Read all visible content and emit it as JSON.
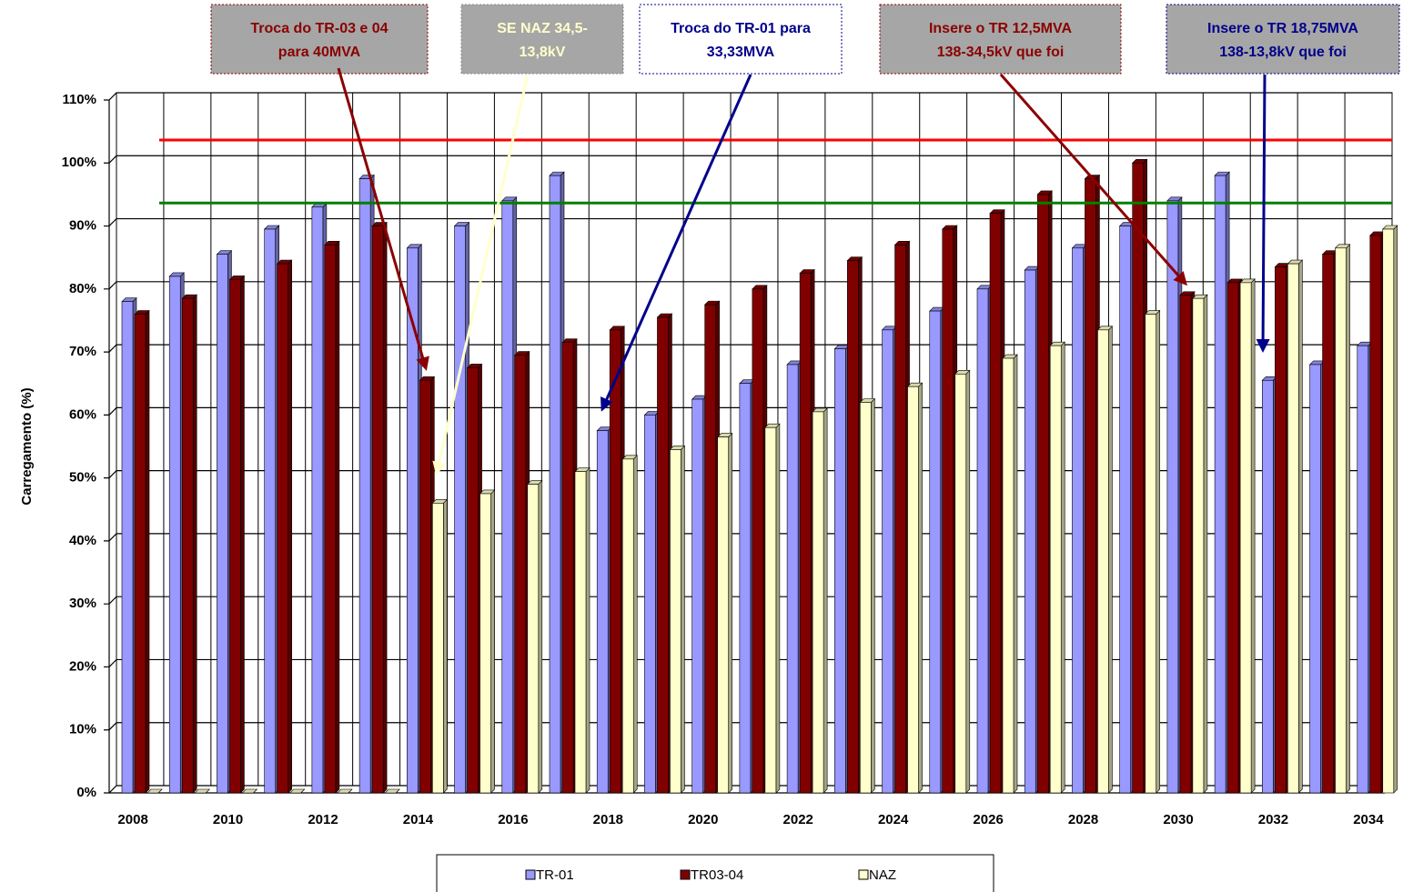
{
  "chart_data": {
    "type": "bar3d",
    "y_axis_label": "Carregamento (%)",
    "categories": [
      "2008",
      null,
      "2010",
      null,
      "2012",
      null,
      "2014",
      null,
      "2016",
      null,
      "2018",
      null,
      "2020",
      null,
      "2022",
      null,
      "2024",
      null,
      "2026",
      null,
      "2028",
      null,
      "2030",
      null,
      "2032",
      null,
      "2034"
    ],
    "series": [
      {
        "name": "TR-01",
        "color": "#9999ff",
        "values": [
          78,
          82,
          85.5,
          89.5,
          93,
          97.5,
          86.5,
          90,
          94,
          98,
          57.5,
          60,
          62.5,
          65,
          68,
          70.5,
          73.5,
          76.5,
          80,
          83,
          86.5,
          90,
          94,
          98,
          65.5,
          68,
          71
        ]
      },
      {
        "name": "TR03-04",
        "color": "#800000",
        "values": [
          76,
          78.5,
          81.5,
          84,
          87,
          90,
          65.5,
          67.5,
          69.5,
          71.5,
          73.5,
          75.5,
          77.5,
          80,
          82.5,
          84.5,
          87,
          89.5,
          92,
          95,
          97.5,
          100,
          79,
          81,
          83.5,
          85.5,
          88.5
        ]
      },
      {
        "name": "NAZ",
        "color": "#ffffcc",
        "values": [
          0,
          0,
          0,
          0,
          0,
          0,
          46,
          47.5,
          49,
          51,
          53,
          54.5,
          56.5,
          58,
          60.5,
          62,
          64.5,
          66.5,
          69,
          71,
          73.5,
          76,
          78.5,
          81,
          84,
          86.5,
          89.5
        ]
      }
    ],
    "reference_lines": [
      {
        "value": 102.5,
        "color": "#ff0000"
      },
      {
        "value": 92.5,
        "color": "#008000"
      }
    ],
    "ylim": [
      0,
      110
    ],
    "yticks": [
      {
        "value": 0,
        "label": "0%"
      },
      {
        "value": 10,
        "label": "10%"
      },
      {
        "value": 20,
        "label": "20%"
      },
      {
        "value": 30,
        "label": "30%"
      },
      {
        "value": 40,
        "label": "40%"
      },
      {
        "value": 50,
        "label": "50%"
      },
      {
        "value": 60,
        "label": "60%"
      },
      {
        "value": 70,
        "label": "70%"
      },
      {
        "value": 80,
        "label": "80%"
      },
      {
        "value": 90,
        "label": "90%"
      },
      {
        "value": 100,
        "label": "100%"
      },
      {
        "value": 110,
        "label": "110%"
      }
    ],
    "grid": true,
    "legend": "bottom",
    "annotations": [
      {
        "lines": [
          "Troca do TR-03 e 04",
          "para 40MVA"
        ],
        "color": "#8b0000"
      },
      {
        "lines": [
          "SE NAZ  34,5-",
          "13,8kV"
        ],
        "color": "#ffffcc"
      },
      {
        "lines": [
          "Troca do TR-01 para",
          "33,33MVA"
        ],
        "color": "#00008b"
      },
      {
        "lines": [
          "Insere o TR 12,5MVA",
          "138-34,5kV que foi"
        ],
        "color": "#8b0000"
      },
      {
        "lines": [
          "Insere o TR 18,75MVA",
          "138-13,8kV que foi"
        ],
        "color": "#00008b"
      }
    ]
  }
}
